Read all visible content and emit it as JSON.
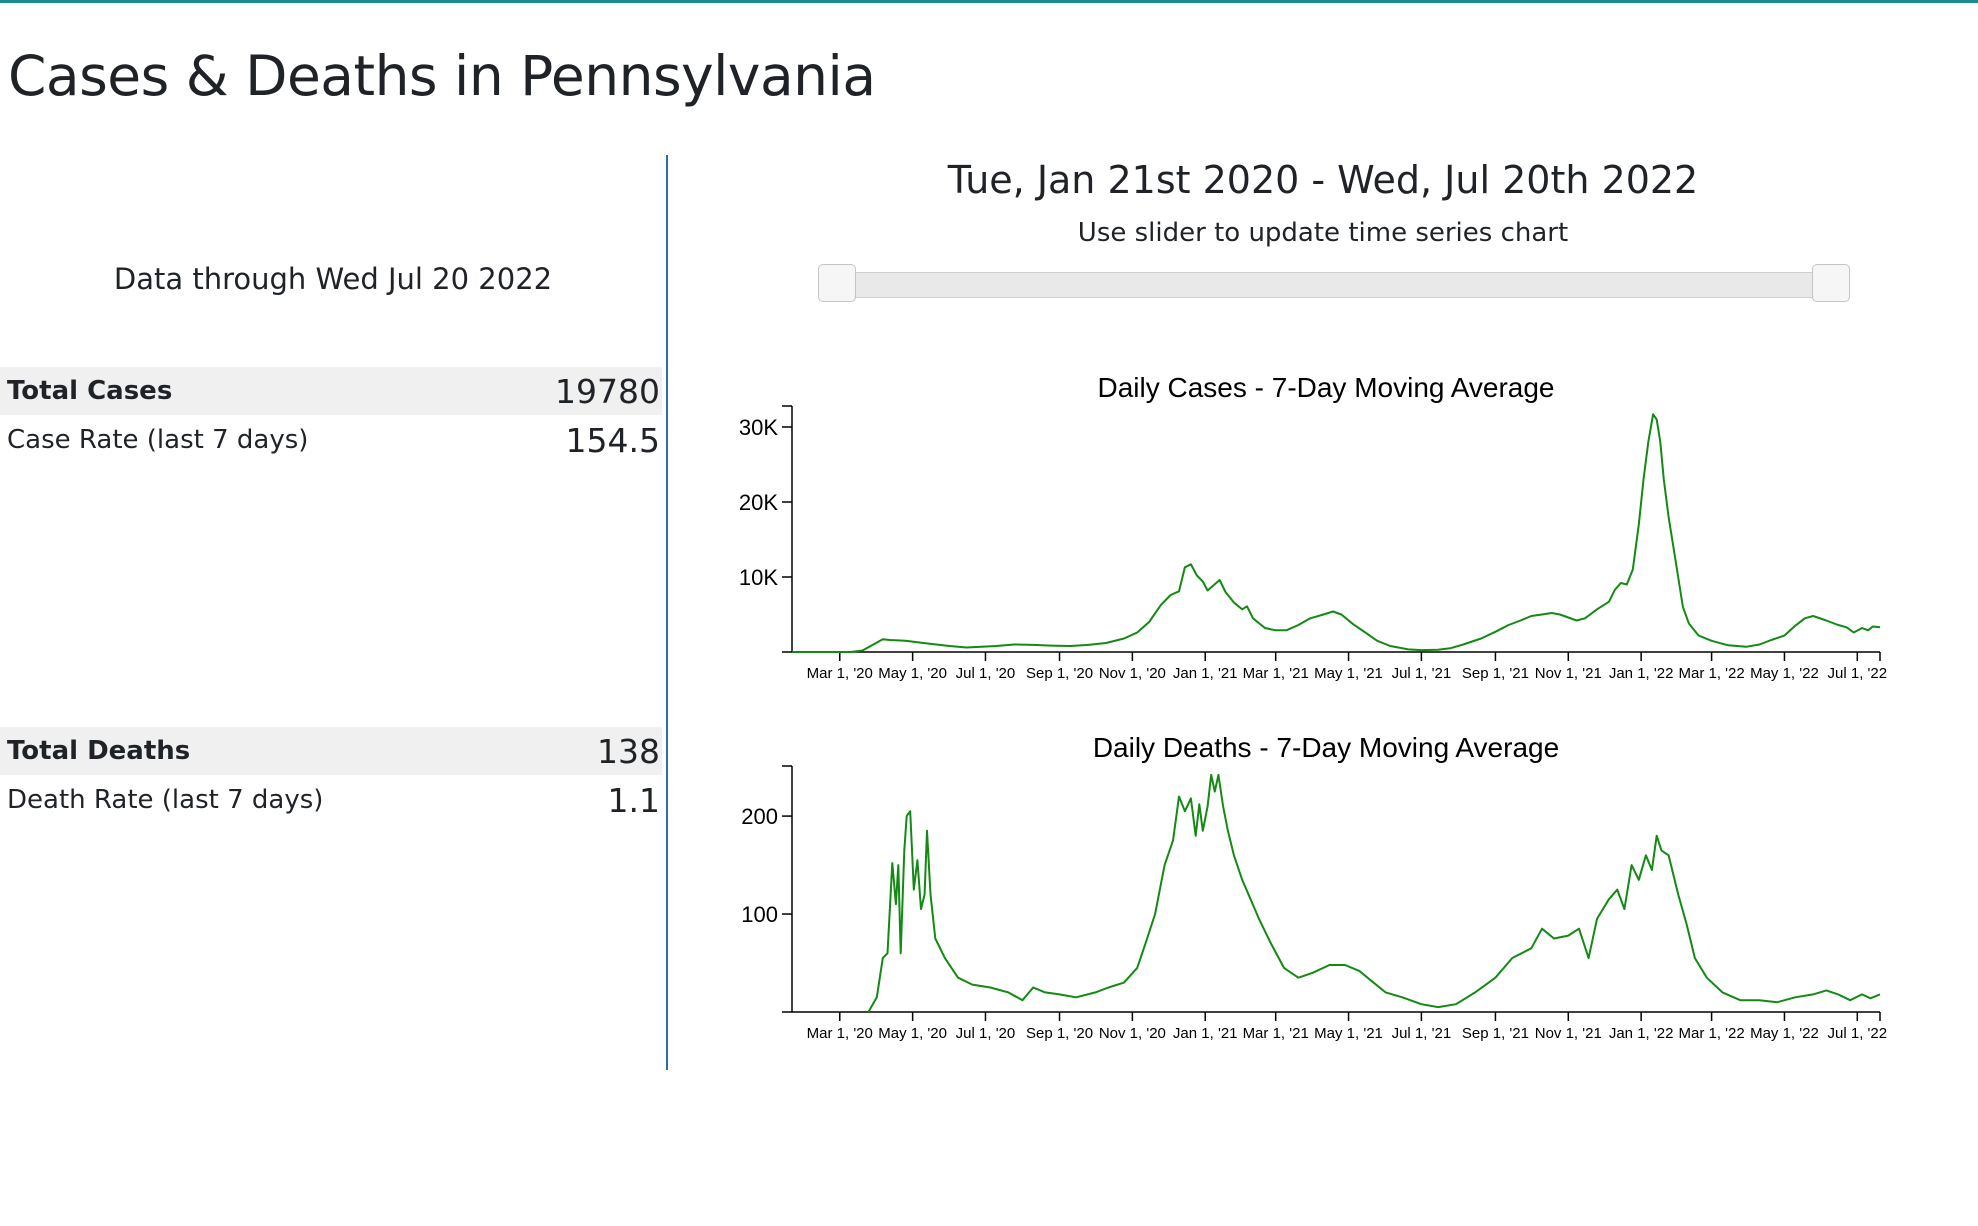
{
  "page": {
    "title": "Cases & Deaths in Pennsylvania"
  },
  "summary": {
    "data_through": "Data through Wed Jul 20 2022",
    "cases": {
      "total_label": "Total Cases",
      "total_value": "19780",
      "rate_label": "Case Rate (last 7 days)",
      "rate_value": "154.5"
    },
    "deaths": {
      "total_label": "Total Deaths",
      "total_value": "138",
      "rate_label": "Death Rate (last 7 days)",
      "rate_value": "1.1"
    }
  },
  "timeframe": {
    "range_text": "Tue, Jan 21st 2020 - Wed, Jul 20th 2022",
    "hint": "Use slider to update time series chart",
    "slider_start_fraction": 0.0,
    "slider_end_fraction": 1.0
  },
  "colors": {
    "line": "#138a13",
    "divider": "#2f6f9e",
    "accent_top": "#1b8a8a"
  },
  "chart_data": [
    {
      "type": "line",
      "title": "Daily Cases - 7-Day Moving Average",
      "series": [
        {
          "name": "Daily Cases",
          "color": "#138a13"
        }
      ],
      "x_domain": [
        "2020-01-21",
        "2022-07-20"
      ],
      "y_range": [
        0,
        32000
      ],
      "y_ticks": [
        {
          "value": 10000,
          "label": "10K"
        },
        {
          "value": 20000,
          "label": "20K"
        },
        {
          "value": 30000,
          "label": "30K"
        }
      ],
      "x_ticks": [
        {
          "date": "2020-03-01",
          "label": "Mar 1, '20"
        },
        {
          "date": "2020-05-01",
          "label": "May 1, '20"
        },
        {
          "date": "2020-07-01",
          "label": "Jul 1, '20"
        },
        {
          "date": "2020-09-01",
          "label": "Sep 1, '20"
        },
        {
          "date": "2020-11-01",
          "label": "Nov 1, '20"
        },
        {
          "date": "2021-01-01",
          "label": "Jan 1, '21"
        },
        {
          "date": "2021-03-01",
          "label": "Mar 1, '21"
        },
        {
          "date": "2021-05-01",
          "label": "May 1, '21"
        },
        {
          "date": "2021-07-01",
          "label": "Jul 1, '21"
        },
        {
          "date": "2021-09-01",
          "label": "Sep 1, '21"
        },
        {
          "date": "2021-11-01",
          "label": "Nov 1, '21"
        },
        {
          "date": "2022-01-01",
          "label": "Jan 1, '22"
        },
        {
          "date": "2022-03-01",
          "label": "Mar 1, '22"
        },
        {
          "date": "2022-05-01",
          "label": "May 1, '22"
        },
        {
          "date": "2022-07-01",
          "label": "Jul 1, '22"
        }
      ],
      "points": [
        [
          "2020-01-21",
          0
        ],
        [
          "2020-03-10",
          0
        ],
        [
          "2020-03-20",
          200
        ],
        [
          "2020-03-28",
          900
        ],
        [
          "2020-04-06",
          1700
        ],
        [
          "2020-04-12",
          1600
        ],
        [
          "2020-04-25",
          1500
        ],
        [
          "2020-05-10",
          1200
        ],
        [
          "2020-06-01",
          800
        ],
        [
          "2020-06-15",
          600
        ],
        [
          "2020-07-10",
          800
        ],
        [
          "2020-07-25",
          1000
        ],
        [
          "2020-08-10",
          950
        ],
        [
          "2020-08-25",
          850
        ],
        [
          "2020-09-10",
          800
        ],
        [
          "2020-09-25",
          950
        ],
        [
          "2020-10-10",
          1200
        ],
        [
          "2020-10-25",
          1800
        ],
        [
          "2020-11-05",
          2600
        ],
        [
          "2020-11-15",
          4000
        ],
        [
          "2020-11-25",
          6300
        ],
        [
          "2020-12-03",
          7600
        ],
        [
          "2020-12-10",
          8100
        ],
        [
          "2020-12-15",
          11300
        ],
        [
          "2020-12-20",
          11700
        ],
        [
          "2020-12-25",
          10200
        ],
        [
          "2020-12-30",
          9400
        ],
        [
          "2021-01-03",
          8200
        ],
        [
          "2021-01-08",
          8900
        ],
        [
          "2021-01-13",
          9600
        ],
        [
          "2021-01-18",
          8000
        ],
        [
          "2021-01-25",
          6600
        ],
        [
          "2021-02-01",
          5700
        ],
        [
          "2021-02-05",
          6100
        ],
        [
          "2021-02-10",
          4500
        ],
        [
          "2021-02-20",
          3200
        ],
        [
          "2021-03-01",
          2900
        ],
        [
          "2021-03-10",
          2900
        ],
        [
          "2021-03-20",
          3600
        ],
        [
          "2021-03-30",
          4500
        ],
        [
          "2021-04-10",
          5000
        ],
        [
          "2021-04-18",
          5400
        ],
        [
          "2021-04-25",
          5000
        ],
        [
          "2021-05-05",
          3700
        ],
        [
          "2021-05-15",
          2600
        ],
        [
          "2021-05-25",
          1500
        ],
        [
          "2021-06-05",
          800
        ],
        [
          "2021-06-20",
          350
        ],
        [
          "2021-07-01",
          250
        ],
        [
          "2021-07-15",
          300
        ],
        [
          "2021-07-25",
          500
        ],
        [
          "2021-08-05",
          1000
        ],
        [
          "2021-08-20",
          1800
        ],
        [
          "2021-09-01",
          2700
        ],
        [
          "2021-09-12",
          3600
        ],
        [
          "2021-09-22",
          4200
        ],
        [
          "2021-10-01",
          4800
        ],
        [
          "2021-10-10",
          5000
        ],
        [
          "2021-10-18",
          5200
        ],
        [
          "2021-10-25",
          5000
        ],
        [
          "2021-11-01",
          4600
        ],
        [
          "2021-11-08",
          4200
        ],
        [
          "2021-11-15",
          4500
        ],
        [
          "2021-11-25",
          5700
        ],
        [
          "2021-12-05",
          6700
        ],
        [
          "2021-12-10",
          8300
        ],
        [
          "2021-12-15",
          9200
        ],
        [
          "2021-12-20",
          9000
        ],
        [
          "2021-12-25",
          11000
        ],
        [
          "2021-12-30",
          17000
        ],
        [
          "2022-01-03",
          23000
        ],
        [
          "2022-01-07",
          28000
        ],
        [
          "2022-01-11",
          31700
        ],
        [
          "2022-01-14",
          31000
        ],
        [
          "2022-01-17",
          28000
        ],
        [
          "2022-01-20",
          23000
        ],
        [
          "2022-01-24",
          18000
        ],
        [
          "2022-01-30",
          12000
        ],
        [
          "2022-02-05",
          6000
        ],
        [
          "2022-02-10",
          3800
        ],
        [
          "2022-02-18",
          2200
        ],
        [
          "2022-03-01",
          1500
        ],
        [
          "2022-03-15",
          900
        ],
        [
          "2022-03-30",
          700
        ],
        [
          "2022-04-10",
          1000
        ],
        [
          "2022-04-20",
          1600
        ],
        [
          "2022-05-01",
          2200
        ],
        [
          "2022-05-10",
          3500
        ],
        [
          "2022-05-18",
          4500
        ],
        [
          "2022-05-25",
          4800
        ],
        [
          "2022-06-05",
          4200
        ],
        [
          "2022-06-15",
          3600
        ],
        [
          "2022-06-22",
          3300
        ],
        [
          "2022-06-28",
          2600
        ],
        [
          "2022-07-05",
          3200
        ],
        [
          "2022-07-10",
          2900
        ],
        [
          "2022-07-14",
          3400
        ],
        [
          "2022-07-20",
          3300
        ]
      ]
    },
    {
      "type": "line",
      "title": "Daily Deaths - 7-Day Moving Average",
      "series": [
        {
          "name": "Daily Deaths",
          "color": "#138a13"
        }
      ],
      "x_domain": [
        "2020-01-21",
        "2022-07-20"
      ],
      "y_range": [
        0,
        245
      ],
      "y_ticks": [
        {
          "value": 100,
          "label": "100"
        },
        {
          "value": 200,
          "label": "200"
        }
      ],
      "x_ticks": [
        {
          "date": "2020-03-01",
          "label": "Mar 1, '20"
        },
        {
          "date": "2020-05-01",
          "label": "May 1, '20"
        },
        {
          "date": "2020-07-01",
          "label": "Jul 1, '20"
        },
        {
          "date": "2020-09-01",
          "label": "Sep 1, '20"
        },
        {
          "date": "2020-11-01",
          "label": "Nov 1, '20"
        },
        {
          "date": "2021-01-01",
          "label": "Jan 1, '21"
        },
        {
          "date": "2021-03-01",
          "label": "Mar 1, '21"
        },
        {
          "date": "2021-05-01",
          "label": "May 1, '21"
        },
        {
          "date": "2021-07-01",
          "label": "Jul 1, '21"
        },
        {
          "date": "2021-09-01",
          "label": "Sep 1, '21"
        },
        {
          "date": "2021-11-01",
          "label": "Nov 1, '21"
        },
        {
          "date": "2022-01-01",
          "label": "Jan 1, '22"
        },
        {
          "date": "2022-03-01",
          "label": "Mar 1, '22"
        },
        {
          "date": "2022-05-01",
          "label": "May 1, '22"
        },
        {
          "date": "2022-07-01",
          "label": "Jul 1, '22"
        }
      ],
      "points": [
        [
          "2020-03-25",
          0
        ],
        [
          "2020-04-01",
          15
        ],
        [
          "2020-04-06",
          55
        ],
        [
          "2020-04-10",
          60
        ],
        [
          "2020-04-14",
          152
        ],
        [
          "2020-04-17",
          110
        ],
        [
          "2020-04-19",
          150
        ],
        [
          "2020-04-21",
          60
        ],
        [
          "2020-04-24",
          165
        ],
        [
          "2020-04-26",
          200
        ],
        [
          "2020-04-29",
          205
        ],
        [
          "2020-05-02",
          125
        ],
        [
          "2020-05-05",
          155
        ],
        [
          "2020-05-08",
          105
        ],
        [
          "2020-05-11",
          120
        ],
        [
          "2020-05-13",
          185
        ],
        [
          "2020-05-16",
          120
        ],
        [
          "2020-05-20",
          75
        ],
        [
          "2020-05-28",
          55
        ],
        [
          "2020-06-08",
          35
        ],
        [
          "2020-06-20",
          28
        ],
        [
          "2020-07-05",
          25
        ],
        [
          "2020-07-20",
          20
        ],
        [
          "2020-08-01",
          12
        ],
        [
          "2020-08-10",
          25
        ],
        [
          "2020-08-20",
          20
        ],
        [
          "2020-09-01",
          18
        ],
        [
          "2020-09-15",
          15
        ],
        [
          "2020-10-01",
          20
        ],
        [
          "2020-10-12",
          25
        ],
        [
          "2020-10-25",
          30
        ],
        [
          "2020-11-05",
          45
        ],
        [
          "2020-11-12",
          70
        ],
        [
          "2020-11-20",
          100
        ],
        [
          "2020-11-28",
          150
        ],
        [
          "2020-12-05",
          175
        ],
        [
          "2020-12-10",
          220
        ],
        [
          "2020-12-15",
          205
        ],
        [
          "2020-12-20",
          218
        ],
        [
          "2020-12-24",
          180
        ],
        [
          "2020-12-27",
          212
        ],
        [
          "2020-12-30",
          185
        ],
        [
          "2021-01-03",
          210
        ],
        [
          "2021-01-06",
          242
        ],
        [
          "2021-01-09",
          225
        ],
        [
          "2021-01-12",
          242
        ],
        [
          "2021-01-16",
          210
        ],
        [
          "2021-01-20",
          185
        ],
        [
          "2021-01-25",
          160
        ],
        [
          "2021-02-01",
          135
        ],
        [
          "2021-02-08",
          115
        ],
        [
          "2021-02-15",
          95
        ],
        [
          "2021-02-25",
          70
        ],
        [
          "2021-03-08",
          45
        ],
        [
          "2021-03-20",
          35
        ],
        [
          "2021-04-01",
          40
        ],
        [
          "2021-04-15",
          48
        ],
        [
          "2021-04-28",
          48
        ],
        [
          "2021-05-10",
          42
        ],
        [
          "2021-05-20",
          32
        ],
        [
          "2021-06-01",
          20
        ],
        [
          "2021-06-15",
          15
        ],
        [
          "2021-07-01",
          8
        ],
        [
          "2021-07-15",
          5
        ],
        [
          "2021-07-30",
          8
        ],
        [
          "2021-08-15",
          20
        ],
        [
          "2021-09-01",
          35
        ],
        [
          "2021-09-15",
          55
        ],
        [
          "2021-10-01",
          65
        ],
        [
          "2021-10-10",
          85
        ],
        [
          "2021-10-20",
          75
        ],
        [
          "2021-11-01",
          78
        ],
        [
          "2021-11-10",
          85
        ],
        [
          "2021-11-18",
          55
        ],
        [
          "2021-11-25",
          95
        ],
        [
          "2021-12-05",
          115
        ],
        [
          "2021-12-12",
          125
        ],
        [
          "2021-12-18",
          105
        ],
        [
          "2021-12-24",
          150
        ],
        [
          "2021-12-30",
          135
        ],
        [
          "2022-01-05",
          160
        ],
        [
          "2022-01-10",
          145
        ],
        [
          "2022-01-14",
          180
        ],
        [
          "2022-01-18",
          165
        ],
        [
          "2022-01-24",
          160
        ],
        [
          "2022-02-01",
          120
        ],
        [
          "2022-02-08",
          90
        ],
        [
          "2022-02-15",
          55
        ],
        [
          "2022-02-25",
          35
        ],
        [
          "2022-03-10",
          20
        ],
        [
          "2022-03-25",
          12
        ],
        [
          "2022-04-10",
          12
        ],
        [
          "2022-04-25",
          10
        ],
        [
          "2022-05-10",
          15
        ],
        [
          "2022-05-25",
          18
        ],
        [
          "2022-06-05",
          22
        ],
        [
          "2022-06-15",
          18
        ],
        [
          "2022-06-25",
          12
        ],
        [
          "2022-07-05",
          18
        ],
        [
          "2022-07-12",
          14
        ],
        [
          "2022-07-20",
          18
        ]
      ]
    }
  ]
}
